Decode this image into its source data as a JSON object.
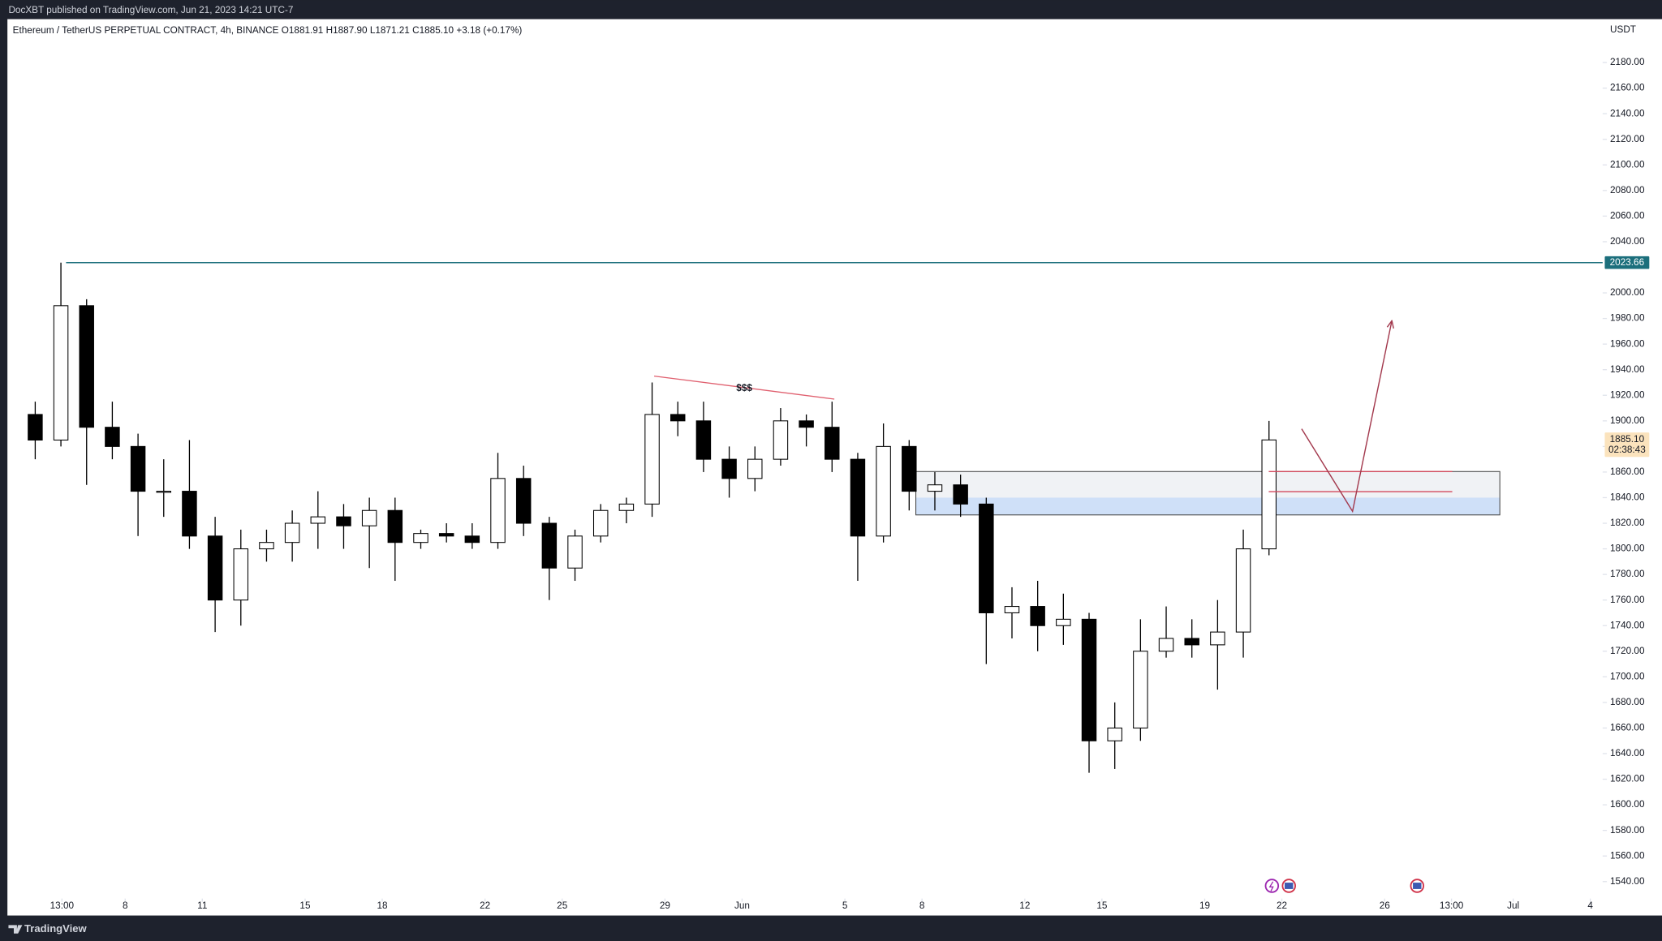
{
  "header": "DocXBT published on TradingView.com, Jun 21, 2023 14:21 UTC-7",
  "footer": "TradingView",
  "chart_data": {
    "type": "candlestick",
    "title": "Ethereum / TetherUS PERPETUAL CONTRACT, 4h, BINANCE  O1881.91  H1887.90  L1871.21  C1885.10  +3.18 (+0.17%)",
    "y_unit": "USDT",
    "x": [
      3.5,
      4.5,
      5.5,
      6.5,
      7.5,
      8.5,
      9.5,
      10.5,
      11.5,
      12.5,
      13.5,
      14.5,
      15.5,
      16.5,
      17.5,
      18.5,
      19.5,
      20.5,
      21.5,
      22.5,
      23.5,
      24.5,
      25.5,
      26.5,
      27.5,
      28.5,
      29.5,
      30.5,
      31.5,
      32.5,
      33.5,
      34.5,
      35.5,
      36.5,
      37.5,
      38.5,
      39.5,
      40.5,
      41.5,
      42.5,
      43.5,
      44.5,
      45.5,
      46.5,
      47.5,
      48.5,
      49.5,
      50.5,
      51.5
    ],
    "open": [
      1905,
      1885,
      1990,
      1895,
      1880,
      1845,
      1845,
      1810,
      1760,
      1800,
      1805,
      1820,
      1825,
      1818,
      1830,
      1805,
      1812,
      1810,
      1805,
      1855,
      1820,
      1785,
      1810,
      1830,
      1835,
      1905,
      1900,
      1870,
      1855,
      1870,
      1900,
      1895,
      1870,
      1810,
      1880,
      1845,
      1850,
      1835,
      1750,
      1755,
      1740,
      1745,
      1650,
      1660,
      1720,
      1730,
      1725,
      1735,
      1800
    ],
    "high": [
      1915,
      2023.66,
      1995,
      1915,
      1890,
      1870,
      1885,
      1825,
      1815,
      1815,
      1830,
      1845,
      1835,
      1840,
      1840,
      1815,
      1820,
      1820,
      1875,
      1865,
      1825,
      1815,
      1835,
      1840,
      1930,
      1915,
      1915,
      1880,
      1880,
      1910,
      1905,
      1915,
      1875,
      1898,
      1885,
      1860,
      1858,
      1840,
      1770,
      1775,
      1765,
      1750,
      1680,
      1745,
      1755,
      1745,
      1760,
      1815,
      1900
    ],
    "low": [
      1870,
      1880,
      1850,
      1870,
      1810,
      1825,
      1800,
      1735,
      1740,
      1790,
      1790,
      1800,
      1800,
      1785,
      1775,
      1800,
      1805,
      1800,
      1800,
      1810,
      1760,
      1775,
      1805,
      1820,
      1825,
      1888,
      1860,
      1840,
      1845,
      1865,
      1880,
      1860,
      1775,
      1805,
      1830,
      1830,
      1825,
      1710,
      1730,
      1720,
      1725,
      1625,
      1628,
      1650,
      1715,
      1715,
      1690,
      1715,
      1795
    ],
    "close": [
      1885,
      1990,
      1895,
      1880,
      1845,
      1845,
      1810,
      1760,
      1800,
      1805,
      1820,
      1825,
      1818,
      1830,
      1805,
      1812,
      1810,
      1805,
      1855,
      1820,
      1785,
      1810,
      1830,
      1835,
      1905,
      1900,
      1870,
      1855,
      1870,
      1900,
      1895,
      1870,
      1810,
      1880,
      1845,
      1850,
      1835,
      1750,
      1755,
      1740,
      1745,
      1650,
      1660,
      1720,
      1730,
      1725,
      1735,
      1800,
      1885.1
    ],
    "up_color": "#ffffff",
    "down_color": "#000000",
    "wick_color": "#000000",
    "xlim": [
      2.46,
      64.48
    ],
    "xticks": [
      {
        "value": 4.54,
        "label": "13:00"
      },
      {
        "value": 7,
        "label": "8"
      },
      {
        "value": 10,
        "label": "11"
      },
      {
        "value": 14,
        "label": "15"
      },
      {
        "value": 17,
        "label": "18"
      },
      {
        "value": 21,
        "label": "22"
      },
      {
        "value": 24,
        "label": "25"
      },
      {
        "value": 28,
        "label": "29"
      },
      {
        "value": 31,
        "label": "Jun"
      },
      {
        "value": 35,
        "label": "5"
      },
      {
        "value": 38,
        "label": "8"
      },
      {
        "value": 42,
        "label": "12"
      },
      {
        "value": 45,
        "label": "15"
      },
      {
        "value": 49,
        "label": "19"
      },
      {
        "value": 52,
        "label": "22"
      },
      {
        "value": 56,
        "label": "26"
      },
      {
        "value": 58.6,
        "label": "13:00"
      },
      {
        "value": 61,
        "label": "Jul"
      },
      {
        "value": 64,
        "label": "4"
      }
    ],
    "ylim": [
      1513.5,
      2213.9
    ],
    "yticks": [
      {
        "value": 1540,
        "label": "1540.00"
      },
      {
        "value": 1560,
        "label": "1560.00"
      },
      {
        "value": 1580,
        "label": "1580.00"
      },
      {
        "value": 1600,
        "label": "1600.00"
      },
      {
        "value": 1620,
        "label": "1620.00"
      },
      {
        "value": 1640,
        "label": "1640.00"
      },
      {
        "value": 1660,
        "label": "1660.00"
      },
      {
        "value": 1680,
        "label": "1680.00"
      },
      {
        "value": 1700,
        "label": "1700.00"
      },
      {
        "value": 1720,
        "label": "1720.00"
      },
      {
        "value": 1740,
        "label": "1740.00"
      },
      {
        "value": 1760,
        "label": "1760.00"
      },
      {
        "value": 1780,
        "label": "1780.00"
      },
      {
        "value": 1800,
        "label": "1800.00"
      },
      {
        "value": 1820,
        "label": "1820.00"
      },
      {
        "value": 1840,
        "label": "1840.00"
      },
      {
        "value": 1860,
        "label": "1860.00"
      },
      {
        "value": 1880,
        "label": "1880.00"
      },
      {
        "value": 1900,
        "label": "1900.00"
      },
      {
        "value": 1920,
        "label": "1920.00"
      },
      {
        "value": 1940,
        "label": "1940.00"
      },
      {
        "value": 1960,
        "label": "1960.00"
      },
      {
        "value": 1980,
        "label": "1980.00"
      },
      {
        "value": 2000,
        "label": "2000.00"
      },
      {
        "value": 2040,
        "label": "2040.00"
      },
      {
        "value": 2060,
        "label": "2060.00"
      },
      {
        "value": 2080,
        "label": "2080.00"
      },
      {
        "value": 2100,
        "label": "2100.00"
      },
      {
        "value": 2120,
        "label": "2120.00"
      },
      {
        "value": 2140,
        "label": "2140.00"
      },
      {
        "value": 2160,
        "label": "2160.00"
      },
      {
        "value": 2180,
        "label": "2180.00"
      }
    ],
    "grid": false,
    "last_price": {
      "value": 1885.1,
      "label": "1885.10",
      "countdown": "02:38:43",
      "color": "#fbe3bd"
    },
    "level": {
      "value": 2023.66,
      "x_start": 4.7,
      "color": "#1c6f7c"
    },
    "drawings": {
      "liquidity_line": {
        "label": "$$$",
        "x": [
          27.58,
          34.59
        ],
        "y": [
          1935,
          1917
        ],
        "color": "#e0606f"
      },
      "zone": {
        "x": [
          37.76,
          60.48
        ],
        "y": [
          1826.5,
          1860.4
        ],
        "split": 1840,
        "color": "#f0f2f5",
        "lower_color": "#cfe0f8",
        "border": "#444444"
      },
      "red_levels": {
        "x": [
          51.49,
          58.63
        ],
        "values": [
          1860.4,
          1844.7
        ],
        "color": "#d2495d"
      },
      "arrow": {
        "x": [
          52.77,
          54.75,
          56.28
        ],
        "y": [
          1893.8,
          1829.3,
          1978.3
        ],
        "color": "#a33a4e"
      }
    }
  }
}
